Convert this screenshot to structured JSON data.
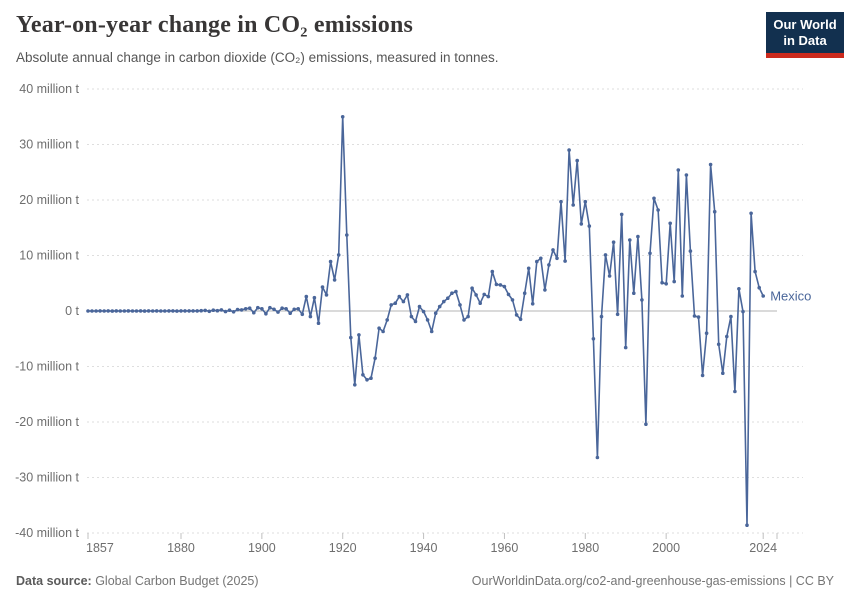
{
  "header": {
    "title": "Year-on-year change in CO₂ emissions",
    "subtitle": "Absolute annual change in carbon dioxide (CO₂) emissions, measured in tonnes."
  },
  "logo": {
    "line1": "Our World",
    "line2": "in Data",
    "bg_color": "#12304f",
    "stripe_color": "#cc2a1d"
  },
  "footer": {
    "source_label": "Data source:",
    "source_value": " Global Carbon Budget (2025)",
    "right_text": "OurWorldinData.org/co2-and-greenhouse-gas-emissions | CC BY"
  },
  "chart_data": {
    "type": "line",
    "title": "Year-on-year change in CO₂ emissions",
    "entity": "Mexico",
    "unit": "tonnes",
    "line_color": "#4a669a",
    "grid": true,
    "legend_position": "end-of-line",
    "ylim": [
      -40,
      40
    ],
    "ytick_step": 10,
    "yticks": [
      40,
      30,
      20,
      10,
      0,
      -10,
      -20,
      -30,
      -40
    ],
    "ytick_labels": [
      "40 million t",
      "30 million t",
      "20 million t",
      "10 million t",
      "0 t",
      "-10 million t",
      "-20 million t",
      "-30 million t",
      "-40 million t"
    ],
    "xticks": [
      1857,
      1880,
      1900,
      1920,
      1940,
      1960,
      1980,
      2000,
      2024
    ],
    "x_start": 1857,
    "x_end": 2024,
    "series": [
      {
        "name": "Mexico",
        "years_note": "annual values from 1857 to 2024 inclusive",
        "values": [
          0,
          0,
          0,
          0.01,
          0,
          0.01,
          -0.01,
          0.01,
          0,
          0,
          0.01,
          0,
          0,
          0.01,
          -0.01,
          0.01,
          0,
          0.01,
          0,
          0,
          0.02,
          0.01,
          -0.01,
          0.02,
          0.01,
          0.02,
          0.01,
          0.02,
          0.05,
          0.1,
          -0.05,
          0.15,
          0.05,
          0.2,
          -0.1,
          0.15,
          -0.15,
          0.25,
          0.2,
          0.4,
          0.5,
          -0.3,
          0.6,
          0.4,
          -0.5,
          0.6,
          0.3,
          -0.2,
          0.5,
          0.4,
          -0.4,
          0.3,
          0.4,
          -0.6,
          2.6,
          -1.0,
          2.4,
          -2.2,
          4.3,
          2.9,
          8.9,
          5.6,
          10.1,
          35.0,
          13.7,
          -4.8,
          -13.3,
          -4.3,
          -11.5,
          -12.4,
          -12.1,
          -8.5,
          -3.1,
          -3.7,
          -1.6,
          1.1,
          1.4,
          2.6,
          1.7,
          2.9,
          -1.0,
          -1.9,
          0.8,
          -0.1,
          -1.6,
          -3.7,
          -0.4,
          0.8,
          1.7,
          2.3,
          3.2,
          3.5,
          1.1,
          -1.6,
          -1.0,
          4.1,
          2.9,
          1.4,
          3.0,
          2.6,
          7.1,
          4.8,
          4.7,
          4.4,
          3.0,
          2.0,
          -0.7,
          -1.5,
          3.2,
          7.7,
          1.3,
          8.9,
          9.5,
          3.8,
          8.3,
          11.0,
          9.5,
          19.7,
          9.0,
          29.0,
          19.1,
          27.1,
          15.7,
          19.7,
          15.3,
          -5.0,
          -26.4,
          -1.0,
          10.1,
          6.3,
          12.4,
          -0.6,
          17.4,
          -6.6,
          12.8,
          3.2,
          13.4,
          2.0,
          -20.4,
          10.4,
          20.3,
          18.2,
          5.1,
          4.9,
          15.8,
          5.3,
          25.4,
          2.7,
          24.5,
          10.8,
          -0.9,
          -1.1,
          -11.6,
          -4.0,
          26.4,
          17.9,
          -6.0,
          -11.2,
          -4.6,
          -1.0,
          -14.5,
          4.0,
          -0.1,
          -38.6,
          17.6,
          7.1,
          4.2,
          2.7
        ]
      }
    ]
  }
}
